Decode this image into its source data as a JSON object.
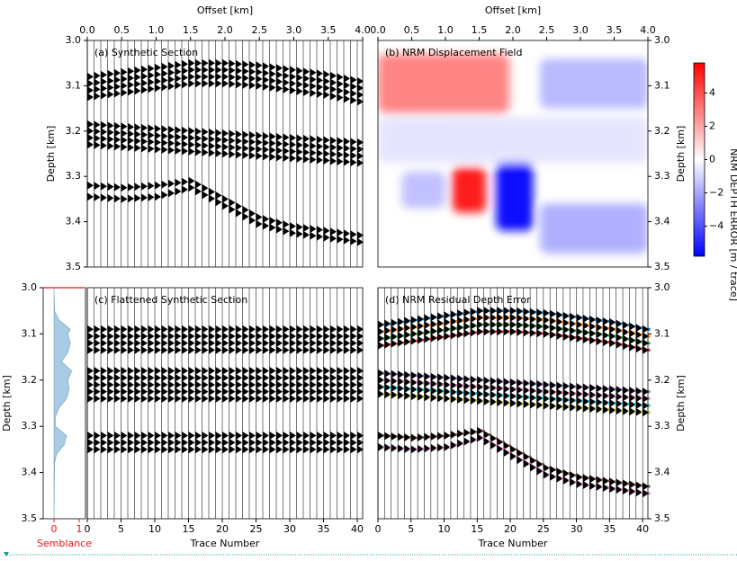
{
  "chart_data": [
    {
      "type": "area",
      "x_label": "Semblance",
      "y_label": "Depth [km]",
      "xlim": [
        -0.43,
        1.25
      ],
      "xticks": [
        0,
        1
      ],
      "ylim": [
        3.0,
        3.5
      ],
      "yticks": [
        {
          "value": 3,
          "label": "3.0"
        },
        3.1,
        3.2,
        3.3,
        3.4,
        {
          "value": 3.5,
          "label": "3.5"
        }
      ],
      "color": "#a9cbe3",
      "axis_color": "#e8141a",
      "depths": [
        3.0,
        3.05,
        3.07,
        3.09,
        3.1,
        3.12,
        3.14,
        3.16,
        3.18,
        3.2,
        3.22,
        3.24,
        3.26,
        3.28,
        3.3,
        3.32,
        3.34,
        3.36,
        3.38,
        3.5
      ],
      "values": [
        0,
        0.02,
        0.2,
        0.65,
        0.55,
        0.65,
        0.55,
        0.3,
        0.7,
        0.55,
        0.6,
        0.5,
        0.2,
        0.05,
        0.05,
        0.5,
        0.4,
        0.1,
        0.02,
        0
      ]
    },
    {
      "type": "wiggle",
      "title": "(a) Synthetic Section",
      "x_label": "Offset [km]",
      "y_label": "Depth [km]",
      "xlim": [
        0,
        4.0
      ],
      "xticks": [
        {
          "value": 0,
          "label": "0.0"
        },
        0.5,
        {
          "value": 1,
          "label": "1.0"
        },
        1.5,
        {
          "value": 2,
          "label": "2.0"
        },
        2.5,
        {
          "value": 3,
          "label": "3.0"
        },
        3.5,
        {
          "value": 4,
          "label": "4.0"
        }
      ],
      "ylim": [
        3.0,
        3.5
      ],
      "yticks": [
        {
          "value": 3,
          "label": "3.0"
        },
        3.1,
        3.2,
        3.3,
        3.4,
        {
          "value": 3.5,
          "label": "3.5"
        }
      ],
      "trace_lim": [
        0,
        40.8
      ],
      "trace_count": 41,
      "trace_knots": [
        0,
        5,
        10,
        15,
        20,
        25,
        30,
        35,
        40
      ],
      "events": [
        [
          3.08,
          3.07,
          3.06,
          3.05,
          3.05,
          3.055,
          3.065,
          3.075,
          3.09
        ],
        [
          3.095,
          3.085,
          3.075,
          3.065,
          3.065,
          3.07,
          3.08,
          3.09,
          3.105
        ],
        [
          3.11,
          3.1,
          3.09,
          3.08,
          3.08,
          3.085,
          3.095,
          3.105,
          3.12
        ],
        [
          3.125,
          3.115,
          3.105,
          3.095,
          3.095,
          3.1,
          3.11,
          3.12,
          3.135
        ],
        [
          3.185,
          3.19,
          3.195,
          3.2,
          3.205,
          3.21,
          3.215,
          3.22,
          3.225
        ],
        [
          3.2,
          3.205,
          3.21,
          3.215,
          3.22,
          3.225,
          3.23,
          3.235,
          3.24
        ],
        [
          3.215,
          3.22,
          3.225,
          3.23,
          3.235,
          3.24,
          3.245,
          3.25,
          3.255
        ],
        [
          3.23,
          3.235,
          3.24,
          3.245,
          3.25,
          3.255,
          3.26,
          3.265,
          3.27
        ],
        [
          3.32,
          3.325,
          3.32,
          3.31,
          3.35,
          3.39,
          3.41,
          3.42,
          3.43
        ],
        [
          3.345,
          3.35,
          3.345,
          3.325,
          3.365,
          3.405,
          3.425,
          3.435,
          3.445
        ]
      ]
    },
    {
      "type": "heatmap",
      "title": "(b) NRM Displacement Field",
      "x_label": "Offset [km]",
      "y_label": "Depth [km]",
      "xlim": [
        0,
        4.0
      ],
      "xticks": [
        {
          "value": 0,
          "label": "0.0"
        },
        0.5,
        {
          "value": 1,
          "label": "1.0"
        },
        1.5,
        {
          "value": 2,
          "label": "2.0"
        },
        2.5,
        {
          "value": 3,
          "label": "3.0"
        },
        3.5,
        {
          "value": 4,
          "label": "4.0"
        }
      ],
      "ylim": [
        3.0,
        3.5
      ],
      "yticks": [
        {
          "value": 3,
          "label": "3.0"
        },
        3.1,
        3.2,
        3.3,
        3.4,
        {
          "value": 3.5,
          "label": "3.5"
        }
      ],
      "clim": [
        -5.8,
        5.8
      ],
      "cticks": [
        4,
        2,
        0,
        {
          "value": -2,
          "label": "−2"
        },
        {
          "value": -4,
          "label": "−4"
        }
      ],
      "colorbar_label": "NRM DEPTH ERROR [m / trace]",
      "regions": [
        {
          "x": [
            0,
            4.0
          ],
          "y": [
            3.17,
            3.27
          ],
          "value": -0.6
        },
        {
          "x": [
            0,
            1.95
          ],
          "y": [
            3.03,
            3.16
          ],
          "value": 2.8
        },
        {
          "x": [
            2.4,
            4.0
          ],
          "y": [
            3.04,
            3.15
          ],
          "value": -1.6
        },
        {
          "x": [
            0.35,
            1.0
          ],
          "y": [
            3.29,
            3.37
          ],
          "value": -1.4
        },
        {
          "x": [
            1.1,
            1.6
          ],
          "y": [
            3.28,
            3.38
          ],
          "value": 5.2
        },
        {
          "x": [
            1.75,
            2.3
          ],
          "y": [
            3.27,
            3.42
          ],
          "value": -5.6
        },
        {
          "x": [
            2.4,
            4.0
          ],
          "y": [
            3.36,
            3.47
          ],
          "value": -1.8
        }
      ]
    },
    {
      "type": "wiggle",
      "title": "(c) Flattened Synthetic Section",
      "x_label": "Trace Number",
      "xlim": [
        0,
        40.8
      ],
      "xticks": [
        0,
        5,
        10,
        15,
        20,
        25,
        30,
        35,
        40
      ],
      "ylim": [
        3.0,
        3.5
      ],
      "trace_count": 41,
      "event_depths": [
        3.09,
        3.105,
        3.12,
        3.135,
        3.18,
        3.195,
        3.21,
        3.225,
        3.24,
        3.32,
        3.335,
        3.35
      ]
    },
    {
      "type": "wiggle",
      "title": "(d) NRM Residual Depth Error",
      "x_label": "Trace Number",
      "y_label": "Depth [km]",
      "xlim": [
        0,
        40.8
      ],
      "xticks": [
        0,
        5,
        10,
        15,
        20,
        25,
        30,
        35,
        40
      ],
      "ylim": [
        3.0,
        3.5
      ],
      "yticks": [
        {
          "value": 3,
          "label": "3.0"
        },
        3.1,
        3.2,
        3.3,
        3.4,
        {
          "value": 3.5,
          "label": "3.5"
        }
      ],
      "trace_count": 41,
      "dot_colors": [
        "#1f77b4",
        "#ff7f0e",
        "#2ca02c",
        "#d62728",
        "#9467bd",
        "#e377c2",
        "#17becf",
        "#bcbd22",
        "#8c564b",
        "#e377c2"
      ]
    }
  ]
}
